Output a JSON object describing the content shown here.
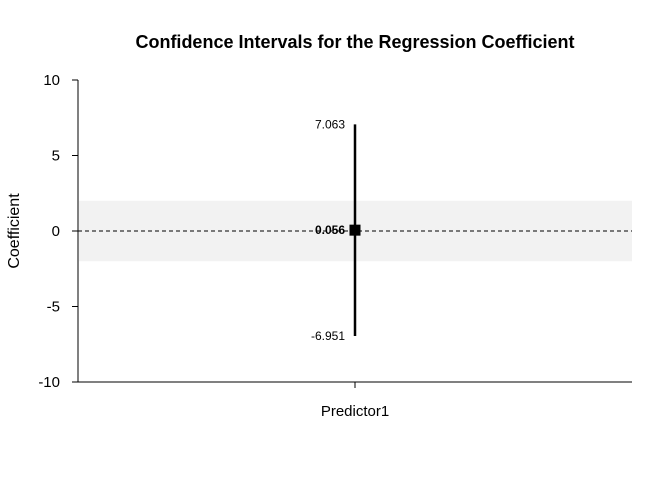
{
  "chart_data": {
    "type": "errorbar",
    "title": "Confidence Intervals for the Regression Coefficient",
    "xlabel": "",
    "ylabel": "Coefficient",
    "categories": [
      "Predictor1"
    ],
    "estimate": [
      0.056
    ],
    "lower": [
      -6.951
    ],
    "upper": [
      7.063
    ],
    "estimate_labels": [
      "0.056"
    ],
    "lower_labels": [
      "-6.951"
    ],
    "upper_labels": [
      "7.063"
    ],
    "ylim": [
      -10,
      10
    ],
    "yticks": [
      -10,
      -5,
      0,
      5,
      10
    ],
    "ytick_labels": [
      "-10",
      "-5",
      "0",
      "5",
      "10"
    ],
    "reference_line": 0,
    "shaded_band": [
      -2,
      2
    ],
    "grid": false,
    "colors": {
      "band": "#f2f2f2",
      "line": "#000000",
      "point": "#000000"
    }
  }
}
